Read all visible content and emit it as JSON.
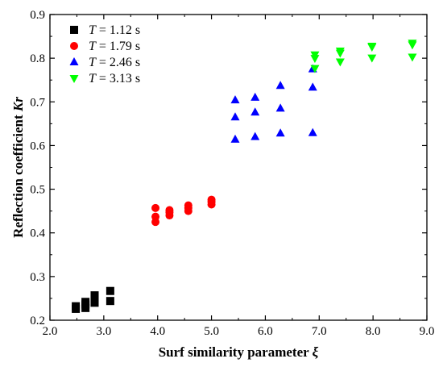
{
  "chart_data": {
    "type": "scatter",
    "title": "",
    "xlabel": {
      "main": "Surf similarity  parameter ",
      "symbol": "ξ"
    },
    "ylabel": {
      "main": "Reflection coefficient ",
      "symbol": "Kr"
    },
    "xlim": [
      2.0,
      9.0
    ],
    "ylim": [
      0.2,
      0.9
    ],
    "xticks": [
      2.0,
      3.0,
      4.0,
      5.0,
      6.0,
      7.0,
      8.0,
      9.0
    ],
    "xtick_labels": [
      "2.0",
      "3.0",
      "4.0",
      "5.0",
      "6.0",
      "7.0",
      "8.0",
      "9.0"
    ],
    "yticks": [
      0.2,
      0.3,
      0.4,
      0.5,
      0.6,
      0.7,
      0.8,
      0.9
    ],
    "ytick_labels": [
      "0.2",
      "0.3",
      "0.4",
      "0.5",
      "0.6",
      "0.7",
      "0.8",
      "0.9"
    ],
    "grid": false,
    "legend_position": "top-left",
    "series": [
      {
        "name": "T = 1.12 s",
        "name_parts": [
          "T",
          " = 1.12 s"
        ],
        "marker": "square",
        "color": "#000000",
        "points": [
          [
            2.48,
            0.226
          ],
          [
            2.48,
            0.232
          ],
          [
            2.66,
            0.228
          ],
          [
            2.66,
            0.236
          ],
          [
            2.66,
            0.242
          ],
          [
            2.83,
            0.24
          ],
          [
            2.83,
            0.25
          ],
          [
            2.83,
            0.257
          ],
          [
            3.12,
            0.244
          ],
          [
            3.12,
            0.267
          ]
        ]
      },
      {
        "name": "T = 1.79 s",
        "name_parts": [
          "T",
          " = 1.79 s"
        ],
        "marker": "circle",
        "color": "#ff0000",
        "points": [
          [
            3.96,
            0.425
          ],
          [
            3.96,
            0.437
          ],
          [
            3.96,
            0.457
          ],
          [
            4.22,
            0.44
          ],
          [
            4.22,
            0.447
          ],
          [
            4.22,
            0.452
          ],
          [
            4.57,
            0.45
          ],
          [
            4.57,
            0.457
          ],
          [
            4.57,
            0.463
          ],
          [
            5.0,
            0.465
          ],
          [
            5.0,
            0.471
          ],
          [
            5.0,
            0.476
          ]
        ]
      },
      {
        "name": "T = 2.46 s",
        "name_parts": [
          "T",
          " = 2.46 s"
        ],
        "marker": "triangle-up",
        "color": "#0000ff",
        "points": [
          [
            5.44,
            0.614
          ],
          [
            5.44,
            0.665
          ],
          [
            5.44,
            0.704
          ],
          [
            5.81,
            0.62
          ],
          [
            5.81,
            0.676
          ],
          [
            5.81,
            0.71
          ],
          [
            6.28,
            0.628
          ],
          [
            6.28,
            0.685
          ],
          [
            6.28,
            0.737
          ],
          [
            6.88,
            0.629
          ],
          [
            6.88,
            0.733
          ],
          [
            6.88,
            0.775
          ]
        ]
      },
      {
        "name": "T = 3.13 s",
        "name_parts": [
          "T",
          " = 3.13 s"
        ],
        "marker": "triangle-down",
        "color": "#00ff00",
        "points": [
          [
            6.92,
            0.777
          ],
          [
            6.92,
            0.8
          ],
          [
            6.92,
            0.808
          ],
          [
            7.39,
            0.792
          ],
          [
            7.39,
            0.812
          ],
          [
            7.39,
            0.817
          ],
          [
            7.98,
            0.801
          ],
          [
            7.98,
            0.826
          ],
          [
            7.98,
            0.828
          ],
          [
            8.73,
            0.803
          ],
          [
            8.73,
            0.831
          ],
          [
            8.73,
            0.835
          ]
        ]
      }
    ]
  }
}
